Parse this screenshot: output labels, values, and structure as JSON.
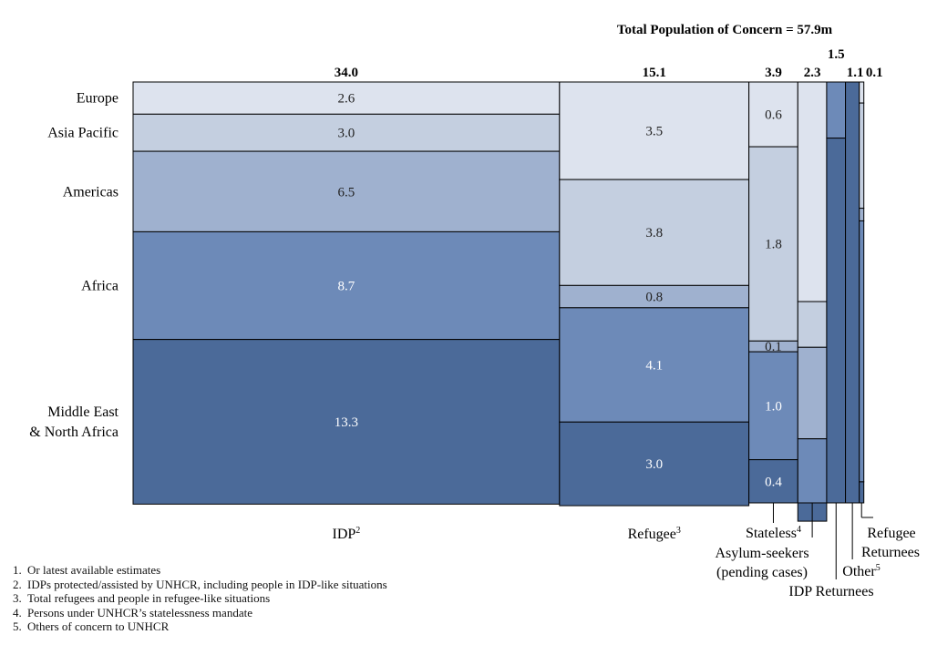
{
  "total_label": "Total Population of Concern = 57.9m",
  "footnotes": [
    {
      "num": "1.",
      "text": "Or latest available  estimates"
    },
    {
      "num": "2.",
      "text": "IDPs protected/assisted by UNHCR, including people in IDP-like situations"
    },
    {
      "num": "3.",
      "text": "Total refugees and people in refugee-like situations"
    },
    {
      "num": "4.",
      "text": "Persons under UNHCR’s statelessness mandate"
    },
    {
      "num": "5.",
      "text": "Others of concern to UNHCR"
    }
  ],
  "chart_data": {
    "type": "marimekko",
    "title": "Total Population of Concern = 57.9m",
    "regions": [
      "Europe",
      "Asia Pacific",
      "Americas",
      "Africa",
      "Middle East\n& North Africa"
    ],
    "colors": {
      "Europe": "#dde3ee",
      "Asia Pacific": "#c4cfe0",
      "Americas": "#9fb1cf",
      "Africa": "#6d8ab8",
      "Middle East & North Africa": "#4b6a99"
    },
    "columns": [
      {
        "category": "IDP",
        "sup": "2",
        "total": 34.0,
        "total_label": "34.0",
        "segments": [
          {
            "region": "Europe",
            "value": 2.6,
            "label": "2.6"
          },
          {
            "region": "Asia Pacific",
            "value": 3.0,
            "label": "3.0"
          },
          {
            "region": "Americas",
            "value": 6.5,
            "label": "6.5"
          },
          {
            "region": "Africa",
            "value": 8.7,
            "label": "8.7"
          },
          {
            "region": "Middle East & North Africa",
            "value": 13.3,
            "label": "13.3"
          }
        ]
      },
      {
        "category": "Refugee",
        "sup": "3",
        "total": 15.1,
        "total_label": "15.1",
        "segments": [
          {
            "region": "Europe",
            "value": 3.5,
            "label": "3.5"
          },
          {
            "region": "Asia Pacific",
            "value": 3.8,
            "label": "3.8"
          },
          {
            "region": "Americas",
            "value": 0.8,
            "label": "0.8"
          },
          {
            "region": "Africa",
            "value": 4.1,
            "label": "4.1"
          },
          {
            "region": "Middle East & North Africa",
            "value": 3.0,
            "label": "3.0"
          }
        ]
      },
      {
        "category": "Stateless",
        "sup": "4",
        "total": 3.9,
        "total_label": "3.9",
        "segments": [
          {
            "region": "Europe",
            "value": 0.6,
            "label": "0.6"
          },
          {
            "region": "Asia Pacific",
            "value": 1.8,
            "label": "1.8"
          },
          {
            "region": "Americas",
            "value": 0.1,
            "label": "0.1"
          },
          {
            "region": "Africa",
            "value": 1.0,
            "label": "1.0"
          },
          {
            "region": "Middle East & North Africa",
            "value": 0.4,
            "label": "0.4"
          }
        ]
      },
      {
        "category": "Asylum-seekers (pending cases)",
        "sup": "",
        "total": 2.3,
        "total_label": "2.3",
        "segments": [
          {
            "region": "Europe",
            "value": 1.2,
            "label": ""
          },
          {
            "region": "Asia Pacific",
            "value": 0.25,
            "label": ""
          },
          {
            "region": "Americas",
            "value": 0.5,
            "label": ""
          },
          {
            "region": "Africa",
            "value": 0.35,
            "label": ""
          },
          {
            "region": "Middle East & North Africa",
            "value": 0.1,
            "label": ""
          }
        ]
      },
      {
        "category": "IDP Returnees",
        "sup": "",
        "total": 1.5,
        "total_label": "1.5",
        "segments": [
          {
            "region": "Europe",
            "value": 0.0,
            "label": ""
          },
          {
            "region": "Asia Pacific",
            "value": 0.0,
            "label": ""
          },
          {
            "region": "Americas",
            "value": 0.0,
            "label": ""
          },
          {
            "region": "Africa",
            "value": 0.2,
            "label": ""
          },
          {
            "region": "Middle East & North Africa",
            "value": 1.3,
            "label": ""
          }
        ]
      },
      {
        "category": "Other",
        "sup": "5",
        "total": 1.1,
        "total_label": "1.1",
        "segments": [
          {
            "region": "Europe",
            "value": 0.0,
            "label": ""
          },
          {
            "region": "Asia Pacific",
            "value": 0.0,
            "label": ""
          },
          {
            "region": "Americas",
            "value": 0.0,
            "label": ""
          },
          {
            "region": "Africa",
            "value": 0.0,
            "label": ""
          },
          {
            "region": "Middle East & North Africa",
            "value": 1.1,
            "label": ""
          }
        ]
      },
      {
        "category": "Refugee Returnees",
        "sup": "",
        "total": 0.1,
        "total_label": "0.1",
        "segments": [
          {
            "region": "Europe",
            "value": 0.005,
            "label": ""
          },
          {
            "region": "Asia Pacific",
            "value": 0.025,
            "label": ""
          },
          {
            "region": "Americas",
            "value": 0.003,
            "label": ""
          },
          {
            "region": "Africa",
            "value": 0.062,
            "label": ""
          },
          {
            "region": "Middle East & North Africa",
            "value": 0.005,
            "label": ""
          }
        ]
      }
    ]
  }
}
